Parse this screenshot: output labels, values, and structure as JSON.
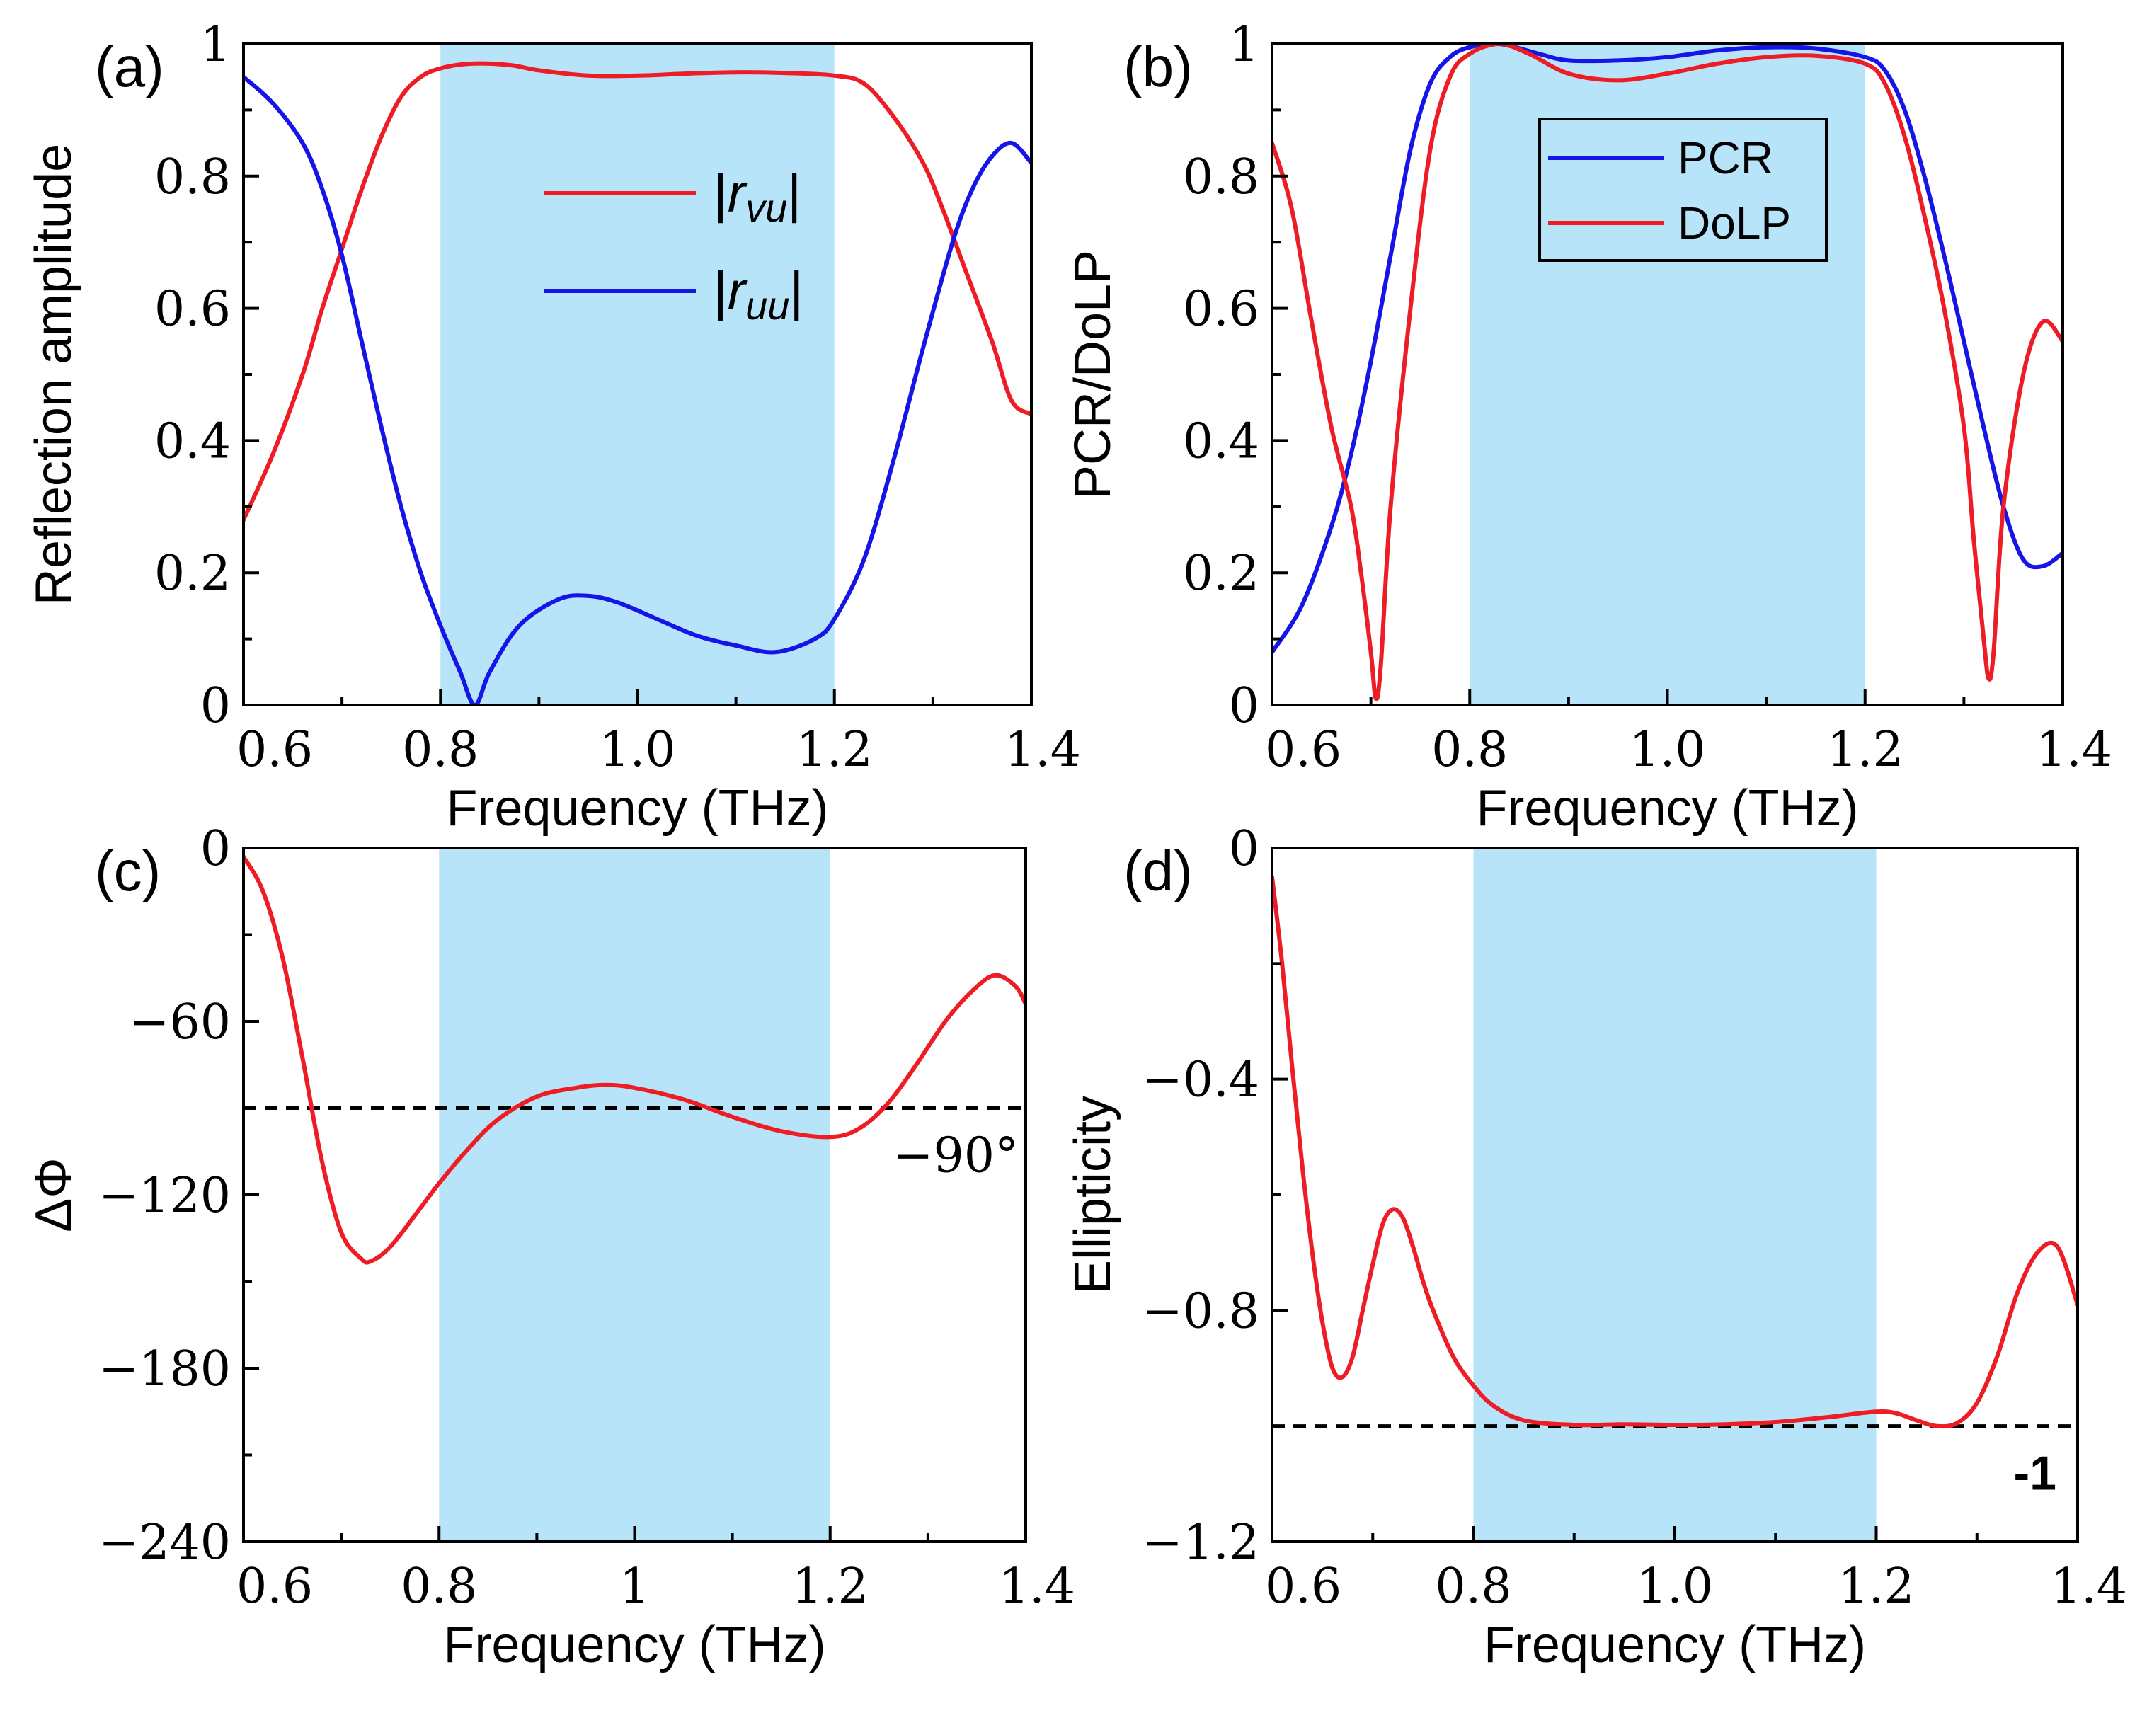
{
  "colors": {
    "red": "#ee1c24",
    "blue": "#1515e8",
    "shade": "#b8e4fa",
    "axis": "#000000"
  },
  "chart_data": [
    {
      "id": "a",
      "type": "line",
      "panel_label": "(a)",
      "xlabel": "Frequency (THz)",
      "ylabel": "Reflection amplitude",
      "xlim": [
        0.6,
        1.4
      ],
      "ylim": [
        0,
        1
      ],
      "xticks": [
        "0.6",
        "0.8",
        "1.0",
        "1.2",
        "1.4"
      ],
      "yticks": [
        "0",
        "0.2",
        "0.4",
        "0.6",
        "0.8",
        "1"
      ],
      "shade_range": [
        0.8,
        1.2
      ],
      "legend": {
        "position": "top-center",
        "boxed": false
      },
      "series": [
        {
          "name": "|r",
          "name_sub": "vu",
          "name_end": "|",
          "color": "red",
          "x": [
            0.6,
            0.63,
            0.66,
            0.68,
            0.7,
            0.72,
            0.74,
            0.76,
            0.78,
            0.8,
            0.83,
            0.87,
            0.9,
            0.95,
            1.0,
            1.05,
            1.1,
            1.15,
            1.2,
            1.23,
            1.26,
            1.29,
            1.31,
            1.33,
            1.36,
            1.38,
            1.4
          ],
          "y": [
            0.28,
            0.38,
            0.5,
            0.6,
            0.69,
            0.78,
            0.86,
            0.92,
            0.95,
            0.963,
            0.97,
            0.968,
            0.96,
            0.952,
            0.952,
            0.955,
            0.957,
            0.956,
            0.952,
            0.94,
            0.89,
            0.82,
            0.75,
            0.67,
            0.55,
            0.46,
            0.44
          ]
        },
        {
          "name": "|r",
          "name_sub": "uu",
          "name_end": "|",
          "color": "blue",
          "x": [
            0.6,
            0.63,
            0.66,
            0.68,
            0.7,
            0.72,
            0.74,
            0.76,
            0.78,
            0.8,
            0.82,
            0.835,
            0.85,
            0.88,
            0.92,
            0.95,
            0.98,
            1.02,
            1.06,
            1.1,
            1.14,
            1.18,
            1.2,
            1.23,
            1.26,
            1.29,
            1.32,
            1.34,
            1.36,
            1.38,
            1.4
          ],
          "y": [
            0.95,
            0.91,
            0.85,
            0.78,
            0.68,
            0.55,
            0.42,
            0.3,
            0.2,
            0.12,
            0.05,
            0.0,
            0.05,
            0.12,
            0.16,
            0.165,
            0.155,
            0.13,
            0.105,
            0.09,
            0.08,
            0.1,
            0.13,
            0.22,
            0.37,
            0.54,
            0.7,
            0.78,
            0.83,
            0.85,
            0.82
          ]
        }
      ]
    },
    {
      "id": "b",
      "type": "line",
      "panel_label": "(b)",
      "xlabel": "Frequency (THz)",
      "ylabel": "PCR/DoLP",
      "xlim": [
        0.6,
        1.4
      ],
      "ylim": [
        0,
        1
      ],
      "xticks": [
        "0.6",
        "0.8",
        "1.0",
        "1.2",
        "1.4"
      ],
      "yticks": [
        "0",
        "0.2",
        "0.4",
        "0.6",
        "0.8",
        "1"
      ],
      "shade_range": [
        0.8,
        1.2
      ],
      "legend": {
        "position": "top-center",
        "boxed": true
      },
      "series": [
        {
          "name": "PCR",
          "color": "blue",
          "x": [
            0.6,
            0.63,
            0.66,
            0.68,
            0.7,
            0.72,
            0.74,
            0.76,
            0.78,
            0.8,
            0.83,
            0.87,
            0.9,
            0.95,
            1.0,
            1.05,
            1.1,
            1.15,
            1.2,
            1.22,
            1.24,
            1.26,
            1.28,
            1.3,
            1.32,
            1.34,
            1.36,
            1.38,
            1.4
          ],
          "y": [
            0.08,
            0.15,
            0.27,
            0.38,
            0.52,
            0.68,
            0.84,
            0.94,
            0.98,
            0.995,
            1.0,
            0.985,
            0.975,
            0.975,
            0.98,
            0.99,
            0.995,
            0.993,
            0.98,
            0.96,
            0.9,
            0.8,
            0.68,
            0.55,
            0.42,
            0.3,
            0.22,
            0.21,
            0.23
          ]
        },
        {
          "name": "DoLP",
          "color": "red",
          "x": [
            0.6,
            0.62,
            0.64,
            0.66,
            0.68,
            0.69,
            0.7,
            0.705,
            0.71,
            0.72,
            0.74,
            0.76,
            0.78,
            0.8,
            0.83,
            0.86,
            0.9,
            0.95,
            1.0,
            1.05,
            1.1,
            1.15,
            1.2,
            1.22,
            1.24,
            1.26,
            1.28,
            1.3,
            1.31,
            1.32,
            1.325,
            1.33,
            1.34,
            1.36,
            1.38,
            1.4
          ],
          "y": [
            0.85,
            0.75,
            0.58,
            0.42,
            0.3,
            0.2,
            0.08,
            0.01,
            0.06,
            0.3,
            0.6,
            0.84,
            0.95,
            0.985,
            1.0,
            0.985,
            0.955,
            0.945,
            0.955,
            0.97,
            0.98,
            0.982,
            0.97,
            0.94,
            0.86,
            0.74,
            0.6,
            0.42,
            0.25,
            0.1,
            0.04,
            0.08,
            0.3,
            0.5,
            0.58,
            0.55
          ]
        }
      ]
    },
    {
      "id": "c",
      "type": "line",
      "panel_label": "(c)",
      "xlabel": "Frequency (THz)",
      "ylabel": "ΔΦ",
      "xlim": [
        0.6,
        1.4
      ],
      "ylim": [
        -240,
        0
      ],
      "xticks": [
        "0.6",
        "0.8",
        "1",
        "1.2",
        "1.4"
      ],
      "yticks": [
        "0",
        "−60",
        "−120",
        "−180",
        "−240"
      ],
      "shade_range": [
        0.8,
        1.2
      ],
      "reference_line": {
        "y": -90,
        "label": "−90°"
      },
      "series": [
        {
          "name": "",
          "color": "red",
          "x": [
            0.6,
            0.62,
            0.64,
            0.66,
            0.68,
            0.7,
            0.72,
            0.73,
            0.75,
            0.78,
            0.8,
            0.83,
            0.86,
            0.9,
            0.94,
            0.97,
            1.0,
            1.05,
            1.1,
            1.15,
            1.2,
            1.23,
            1.26,
            1.29,
            1.32,
            1.35,
            1.37,
            1.39,
            1.4
          ],
          "y": [
            -3,
            -15,
            -38,
            -72,
            -108,
            -133,
            -142,
            -143,
            -138,
            -125,
            -116,
            -104,
            -94,
            -86,
            -83,
            -82,
            -83,
            -87,
            -93,
            -98,
            -100,
            -97,
            -88,
            -74,
            -59,
            -48,
            -44,
            -48,
            -54
          ]
        }
      ]
    },
    {
      "id": "d",
      "type": "line",
      "panel_label": "(d)",
      "xlabel": "Frequency (THz)",
      "ylabel": "Ellipticity",
      "xlim": [
        0.6,
        1.4
      ],
      "ylim": [
        -1.2,
        0
      ],
      "xticks": [
        "0.6",
        "0.8",
        "1.0",
        "1.2",
        "1.4"
      ],
      "yticks": [
        "0",
        "−0.4",
        "−0.8",
        "−1.2"
      ],
      "shade_range": [
        0.8,
        1.2
      ],
      "reference_line": {
        "y": -1,
        "label": "-1"
      },
      "series": [
        {
          "name": "",
          "color": "red",
          "x": [
            0.6,
            0.61,
            0.62,
            0.63,
            0.64,
            0.65,
            0.66,
            0.67,
            0.68,
            0.69,
            0.7,
            0.71,
            0.72,
            0.73,
            0.74,
            0.75,
            0.76,
            0.78,
            0.8,
            0.82,
            0.85,
            0.9,
            0.95,
            1.0,
            1.05,
            1.1,
            1.15,
            1.2,
            1.22,
            1.24,
            1.26,
            1.28,
            1.3,
            1.32,
            1.34,
            1.36,
            1.38,
            1.4
          ],
          "y": [
            -0.05,
            -0.2,
            -0.38,
            -0.55,
            -0.7,
            -0.82,
            -0.9,
            -0.915,
            -0.88,
            -0.8,
            -0.72,
            -0.65,
            -0.625,
            -0.64,
            -0.69,
            -0.75,
            -0.8,
            -0.88,
            -0.93,
            -0.965,
            -0.99,
            -0.998,
            -0.997,
            -0.998,
            -0.997,
            -0.993,
            -0.985,
            -0.975,
            -0.978,
            -0.99,
            -1.0,
            -0.995,
            -0.96,
            -0.88,
            -0.77,
            -0.7,
            -0.69,
            -0.79
          ]
        }
      ]
    }
  ]
}
